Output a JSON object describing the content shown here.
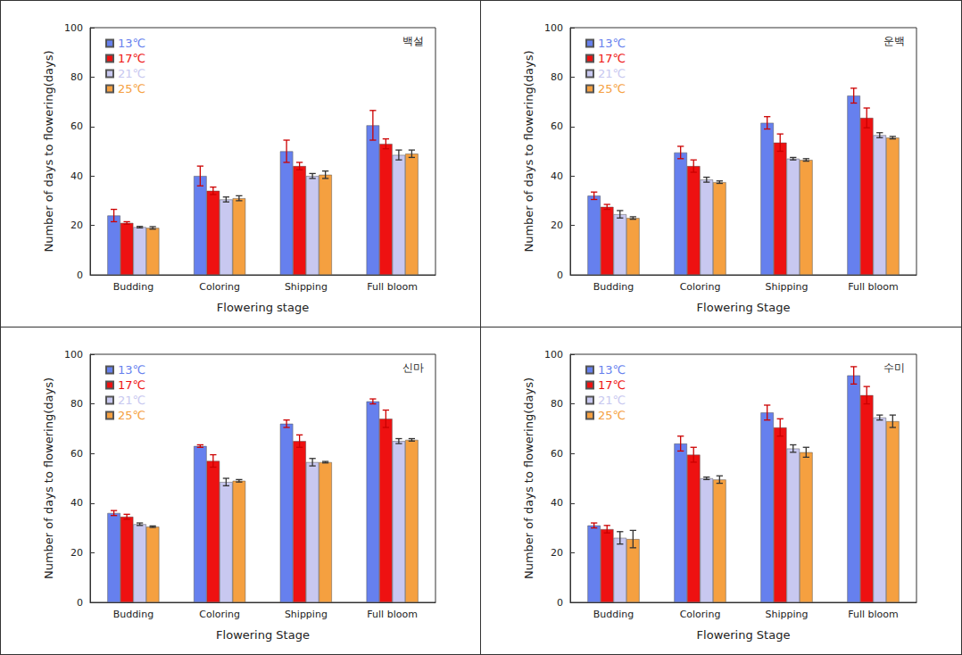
{
  "chart_data": [
    {
      "type": "bar",
      "title": "백설",
      "x_label": "Flowering stage",
      "y_label": "Number of days to flowering(days)",
      "categories": [
        "Budding",
        "Coloring",
        "Shipping",
        "Full bloom"
      ],
      "ylim": [
        0,
        100
      ],
      "yticks": [
        0,
        20,
        40,
        60,
        80,
        100
      ],
      "legend": "upper left",
      "series": [
        {
          "name": "13℃",
          "color": "#6680ee",
          "values": [
            24,
            40,
            50,
            60.5
          ],
          "errors": [
            2.5,
            4,
            4.5,
            6
          ]
        },
        {
          "name": "17℃",
          "color": "#ee1111",
          "values": [
            21,
            34,
            44,
            53
          ],
          "errors": [
            0.5,
            1.5,
            1.5,
            2
          ]
        },
        {
          "name": "21℃",
          "color": "#c8c8f0",
          "values": [
            19.3,
            30.5,
            40,
            48.5
          ],
          "errors": [
            0.3,
            1,
            1,
            2
          ]
        },
        {
          "name": "25℃",
          "color": "#f5a040",
          "values": [
            19,
            31,
            40.5,
            49
          ],
          "errors": [
            0.5,
            1,
            1.5,
            1.5
          ]
        }
      ]
    },
    {
      "type": "bar",
      "title": "운백",
      "x_label": "Flowering Stage",
      "y_label": "Number of days to flowering(days)",
      "categories": [
        "Budding",
        "Coloring",
        "Shipping",
        "Full bloom"
      ],
      "ylim": [
        0,
        100
      ],
      "yticks": [
        0,
        20,
        40,
        60,
        80,
        100
      ],
      "legend": "upper left",
      "series": [
        {
          "name": "13℃",
          "color": "#6680ee",
          "values": [
            32,
            49.5,
            61.5,
            72.5
          ],
          "errors": [
            1.5,
            2.5,
            2.5,
            3
          ]
        },
        {
          "name": "17℃",
          "color": "#ee1111",
          "values": [
            27.5,
            44,
            53.5,
            63.5
          ],
          "errors": [
            1,
            2.5,
            3.5,
            4
          ]
        },
        {
          "name": "21℃",
          "color": "#c8c8f0",
          "values": [
            24.5,
            38.5,
            47,
            56.5
          ],
          "errors": [
            1.5,
            1,
            0.5,
            1
          ]
        },
        {
          "name": "25℃",
          "color": "#f5a040",
          "values": [
            23,
            37.5,
            46.5,
            55.5
          ],
          "errors": [
            0.5,
            0.5,
            0.5,
            0.5
          ]
        }
      ]
    },
    {
      "type": "bar",
      "title": "신마",
      "x_label": "Flowering Stage",
      "y_label": "Number of days to flowering(days)",
      "categories": [
        "Budding",
        "Coloring",
        "Shipping",
        "Full bloom"
      ],
      "ylim": [
        0,
        100
      ],
      "yticks": [
        0,
        20,
        40,
        60,
        80,
        100
      ],
      "legend": "upper left",
      "series": [
        {
          "name": "13℃",
          "color": "#6680ee",
          "values": [
            36,
            63,
            72,
            81
          ],
          "errors": [
            1,
            0.5,
            1.5,
            1
          ]
        },
        {
          "name": "17℃",
          "color": "#ee1111",
          "values": [
            34.5,
            57,
            65,
            74
          ],
          "errors": [
            1,
            2.5,
            2.5,
            3.5
          ]
        },
        {
          "name": "21℃",
          "color": "#c8c8f0",
          "values": [
            31.5,
            48.5,
            56.5,
            65
          ],
          "errors": [
            0.5,
            1.5,
            1.5,
            1
          ]
        },
        {
          "name": "25℃",
          "color": "#f5a040",
          "values": [
            30.5,
            49,
            56.5,
            65.5
          ],
          "errors": [
            0.3,
            0.5,
            0.3,
            0.5
          ]
        }
      ]
    },
    {
      "type": "bar",
      "title": "수미",
      "x_label": "Flowering Stage",
      "y_label": "Number of days to flowering(days)",
      "categories": [
        "Budding",
        "Coloring",
        "Shipping",
        "Full bloom"
      ],
      "ylim": [
        0,
        100
      ],
      "yticks": [
        0,
        20,
        40,
        60,
        80,
        100
      ],
      "legend": "upper left",
      "series": [
        {
          "name": "13℃",
          "color": "#6680ee",
          "values": [
            31,
            64,
            76.5,
            91.5
          ],
          "errors": [
            1,
            3,
            3,
            3.5
          ]
        },
        {
          "name": "17℃",
          "color": "#ee1111",
          "values": [
            29.5,
            59.5,
            70.5,
            83.5
          ],
          "errors": [
            1.5,
            3,
            3.5,
            3.5
          ]
        },
        {
          "name": "21℃",
          "color": "#c8c8f0",
          "values": [
            26,
            50,
            62,
            74.5
          ],
          "errors": [
            2.5,
            0.5,
            1.5,
            1
          ]
        },
        {
          "name": "25℃",
          "color": "#f5a040",
          "values": [
            25.5,
            49.5,
            60.5,
            73
          ],
          "errors": [
            3.5,
            1.5,
            2,
            2.5
          ]
        }
      ]
    }
  ]
}
